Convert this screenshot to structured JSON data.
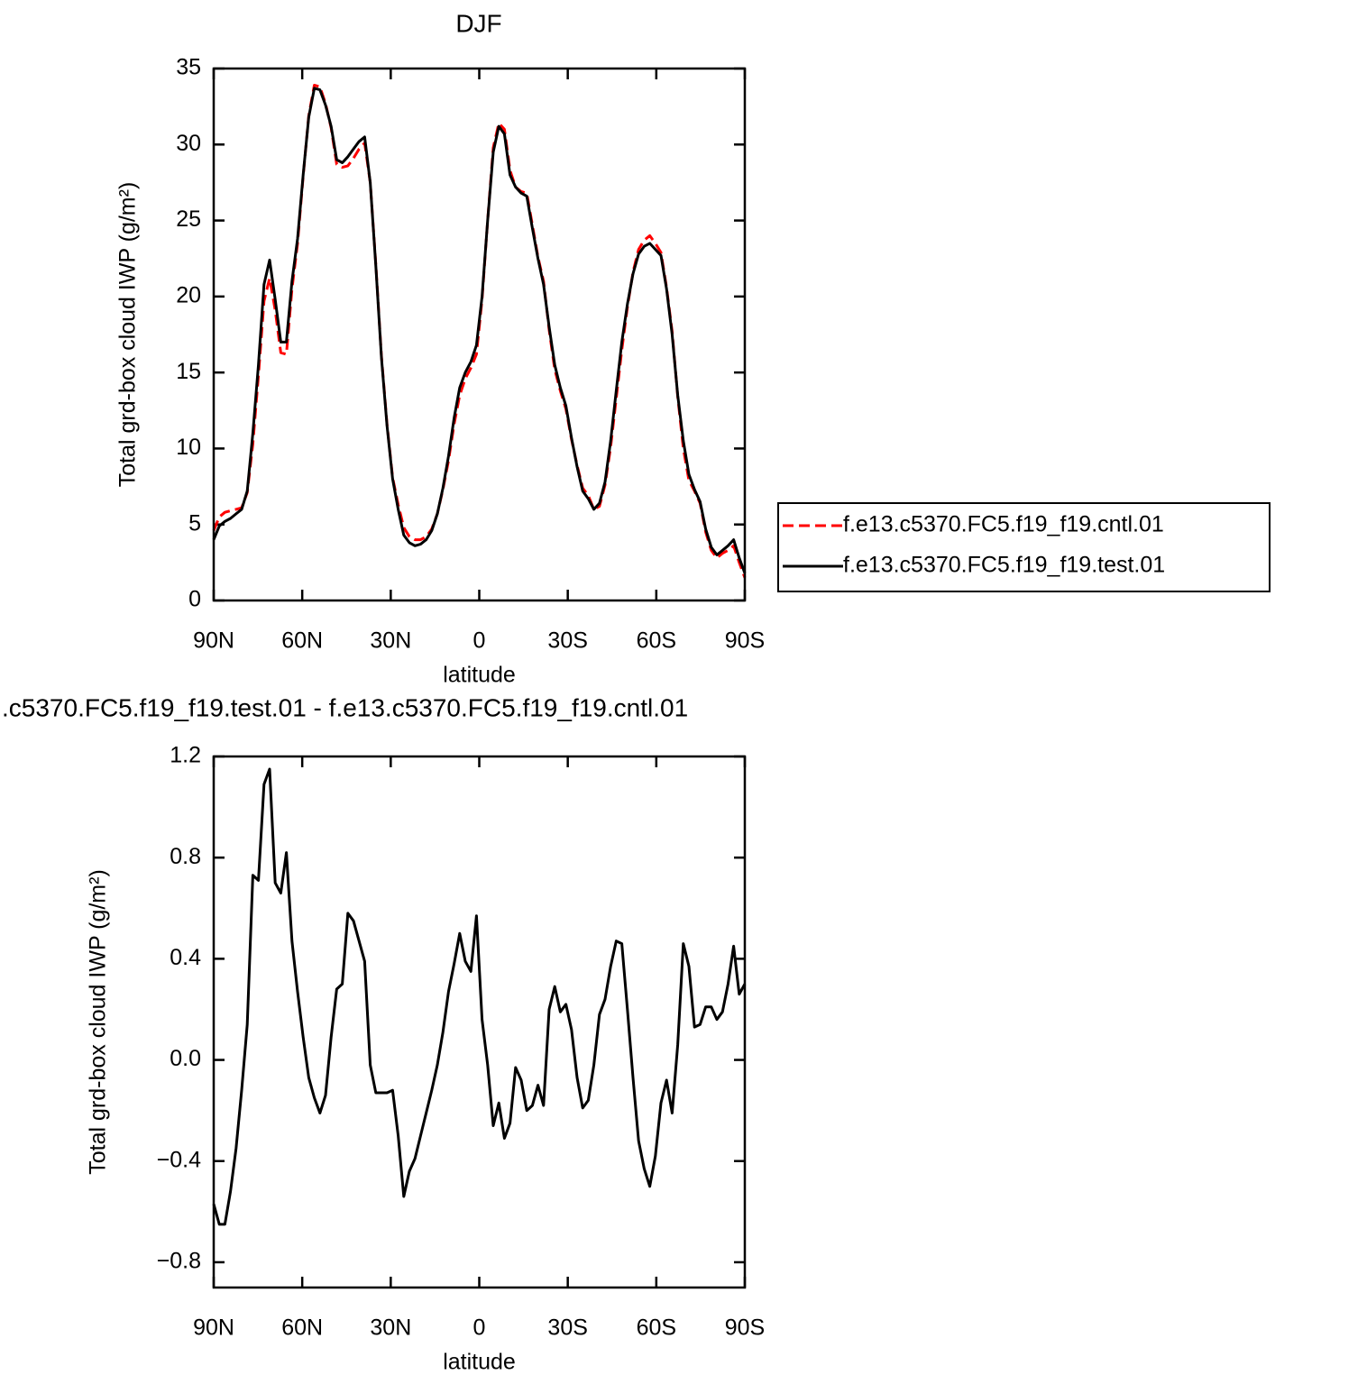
{
  "chart_data": [
    {
      "type": "line",
      "title": "DJF",
      "xlabel": "latitude",
      "ylabel": "Total grd-box cloud IWP (g/m²)",
      "x": [
        90,
        88.11,
        86.21,
        84.32,
        82.42,
        80.53,
        78.63,
        76.74,
        74.84,
        72.95,
        71.05,
        69.16,
        67.26,
        65.37,
        63.47,
        61.58,
        59.68,
        57.79,
        55.89,
        54,
        52.11,
        50.21,
        48.32,
        46.42,
        44.53,
        42.63,
        40.74,
        38.84,
        36.95,
        35.05,
        33.16,
        31.26,
        29.37,
        27.47,
        25.58,
        23.68,
        21.79,
        19.89,
        18,
        16.11,
        14.21,
        12.32,
        10.42,
        8.53,
        6.63,
        4.74,
        2.84,
        0.95,
        -0.95,
        -2.84,
        -4.74,
        -6.63,
        -8.53,
        -10.42,
        -12.32,
        -14.21,
        -16.11,
        -18,
        -19.89,
        -21.79,
        -23.68,
        -25.58,
        -27.47,
        -29.37,
        -31.26,
        -33.16,
        -35.05,
        -36.95,
        -38.84,
        -40.74,
        -42.63,
        -44.53,
        -46.42,
        -48.32,
        -50.21,
        -52.11,
        -54,
        -55.89,
        -57.79,
        -59.68,
        -61.58,
        -63.47,
        -65.37,
        -67.26,
        -69.16,
        -71.05,
        -72.95,
        -74.84,
        -76.74,
        -78.63,
        -80.53,
        -82.42,
        -84.32,
        -86.21,
        -88.11,
        -90
      ],
      "series": [
        {
          "name": "f.e13.c5370.FC5.f19_f19.cntl.01",
          "color": "#ff0000",
          "line_style": "dashed",
          "values": [
            4.6,
            5.5,
            5.8,
            5.9,
            6.0,
            6.1,
            7.1,
            10.3,
            14.8,
            19.7,
            21.2,
            19.1,
            16.3,
            16.2,
            20.5,
            23.5,
            27.9,
            31.9,
            33.9,
            33.8,
            32.7,
            31.1,
            28.7,
            28.5,
            28.6,
            29.1,
            29.7,
            30.1,
            27.5,
            22.1,
            16.1,
            11.6,
            8.1,
            6.3,
            4.8,
            4.2,
            4.0,
            4.0,
            4.2,
            4.7,
            5.7,
            7.3,
            9.2,
            11.6,
            13.5,
            14.6,
            15.3,
            16.2,
            19.8,
            25.0,
            29.8,
            31.4,
            31.0,
            28.3,
            27.2,
            26.9,
            26.8,
            24.7,
            22.6,
            21.0,
            17.8,
            15.2,
            13.8,
            12.6,
            10.6,
            8.9,
            7.4,
            6.9,
            6.0,
            6.2,
            7.6,
            10.1,
            13.3,
            16.5,
            19.3,
            21.6,
            23.1,
            23.7,
            24.0,
            23.5,
            22.9,
            20.6,
            17.7,
            13.4,
            10.0,
            7.9,
            7.2,
            6.4,
            4.5,
            3.3,
            2.8,
            3.1,
            3.3,
            3.6,
            2.5,
            1.5
          ]
        },
        {
          "name": "f.e13.c5370.FC5.f19_f19.test.01",
          "color": "#000000",
          "line_style": "solid",
          "values": [
            4.0,
            4.9,
            5.2,
            5.4,
            5.7,
            6.0,
            7.2,
            11,
            15.5,
            20.8,
            22.4,
            19.8,
            17,
            17,
            21,
            23.8,
            28,
            31.8,
            33.7,
            33.6,
            32.6,
            31.2,
            29,
            28.8,
            29.2,
            29.7,
            30.2,
            30.5,
            27.5,
            22,
            16,
            11.5,
            8,
            6,
            4.3,
            3.8,
            3.6,
            3.7,
            4.0,
            4.6,
            5.7,
            7.4,
            9.5,
            12,
            14,
            15,
            15.7,
            16.8,
            20,
            25,
            29.5,
            31.2,
            30.7,
            28,
            27.2,
            26.8,
            26.6,
            24.5,
            22.5,
            20.8,
            18,
            15.5,
            14,
            12.8,
            10.7,
            8.8,
            7.2,
            6.7,
            6.0,
            6.4,
            7.8,
            10.5,
            13.8,
            17,
            19.5,
            21.5,
            22.8,
            23.3,
            23.5,
            23.1,
            22.7,
            20.5,
            17.5,
            13.5,
            10.5,
            8.3,
            7.3,
            6.5,
            4.7,
            3.5,
            3.0,
            3.3,
            3.6,
            4.0,
            2.8,
            1.8
          ]
        }
      ],
      "xlim": [
        90,
        -90
      ],
      "xticks": [
        {
          "value": 90,
          "label": "90N"
        },
        {
          "value": 60,
          "label": "60N"
        },
        {
          "value": 30,
          "label": "30N"
        },
        0,
        {
          "value": -30,
          "label": "30S"
        },
        {
          "value": -60,
          "label": "60S"
        },
        {
          "value": -90,
          "label": "90S"
        }
      ],
      "ylim": [
        0,
        35
      ],
      "yticks": [
        0,
        5,
        10,
        15,
        20,
        25,
        30,
        35
      ],
      "legend": "right"
    },
    {
      "type": "line",
      "title": ".c5370.FC5.f19_f19.test.01 - f.e13.c5370.FC5.f19_f19.cntl.01",
      "xlabel": "latitude",
      "ylabel": "Total grd-box cloud IWP (g/m²)",
      "x": [
        90,
        88.11,
        86.21,
        84.32,
        82.42,
        80.53,
        78.63,
        76.74,
        74.84,
        72.95,
        71.05,
        69.16,
        67.26,
        65.37,
        63.47,
        61.58,
        59.68,
        57.79,
        55.89,
        54,
        52.11,
        50.21,
        48.32,
        46.42,
        44.53,
        42.63,
        40.74,
        38.84,
        36.95,
        35.05,
        33.16,
        31.26,
        29.37,
        27.47,
        25.58,
        23.68,
        21.79,
        19.89,
        18,
        16.11,
        14.21,
        12.32,
        10.42,
        8.53,
        6.63,
        4.74,
        2.84,
        0.95,
        -0.95,
        -2.84,
        -4.74,
        -6.63,
        -8.53,
        -10.42,
        -12.32,
        -14.21,
        -16.11,
        -18,
        -19.89,
        -21.79,
        -23.68,
        -25.58,
        -27.47,
        -29.37,
        -31.26,
        -33.16,
        -35.05,
        -36.95,
        -38.84,
        -40.74,
        -42.63,
        -44.53,
        -46.42,
        -48.32,
        -50.21,
        -52.11,
        -54,
        -55.89,
        -57.79,
        -59.68,
        -61.58,
        -63.47,
        -65.37,
        -67.26,
        -69.16,
        -71.05,
        -72.95,
        -74.84,
        -76.74,
        -78.63,
        -80.53,
        -82.42,
        -84.32,
        -86.21,
        -88.11,
        -90
      ],
      "values": [
        -0.57,
        -0.65,
        -0.65,
        -0.52,
        -0.35,
        -0.12,
        0.14,
        0.73,
        0.71,
        1.09,
        1.15,
        0.7,
        0.66,
        0.82,
        0.47,
        0.27,
        0.09,
        -0.07,
        -0.15,
        -0.21,
        -0.14,
        0.09,
        0.28,
        0.3,
        0.58,
        0.55,
        0.47,
        0.39,
        -0.02,
        -0.13,
        -0.13,
        -0.13,
        -0.12,
        -0.3,
        -0.54,
        -0.44,
        -0.39,
        -0.3,
        -0.21,
        -0.12,
        -0.02,
        0.11,
        0.27,
        0.38,
        0.5,
        0.39,
        0.35,
        0.57,
        0.16,
        -0.02,
        -0.26,
        -0.17,
        -0.31,
        -0.25,
        -0.03,
        -0.08,
        -0.2,
        -0.18,
        -0.1,
        -0.18,
        0.2,
        0.29,
        0.19,
        0.22,
        0.12,
        -0.07,
        -0.19,
        -0.16,
        -0.02,
        0.18,
        0.24,
        0.37,
        0.47,
        0.46,
        0.2,
        -0.07,
        -0.32,
        -0.43,
        -0.5,
        -0.38,
        -0.17,
        -0.08,
        -0.21,
        0.06,
        0.46,
        0.37,
        0.13,
        0.14,
        0.21,
        0.21,
        0.16,
        0.19,
        0.3,
        0.45,
        0.26,
        0.3
      ],
      "color": "#000000",
      "xlim": [
        90,
        -90
      ],
      "xticks": [
        {
          "value": 90,
          "label": "90N"
        },
        {
          "value": 60,
          "label": "60N"
        },
        {
          "value": 30,
          "label": "30N"
        },
        0,
        {
          "value": -30,
          "label": "30S"
        },
        {
          "value": -60,
          "label": "60S"
        },
        {
          "value": -90,
          "label": "90S"
        }
      ],
      "ylim": [
        -0.9,
        1.2
      ],
      "yticks": [
        {
          "value": -0.8,
          "label": "−0.8"
        },
        {
          "value": -0.4,
          "label": "−0.4"
        },
        {
          "value": 0,
          "label": "0.0"
        },
        0.4,
        0.8,
        1.2
      ]
    }
  ]
}
